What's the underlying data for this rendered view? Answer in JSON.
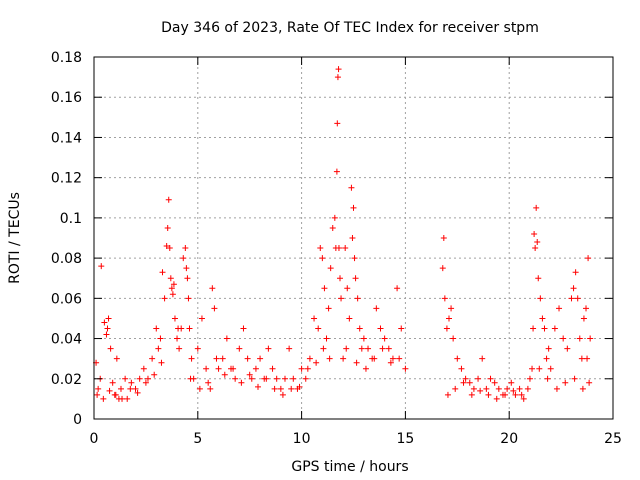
{
  "chart_data": {
    "type": "scatter",
    "title": "Day 346 of 2023, Rate Of TEC Index for receiver stpm",
    "xlabel": "GPS time / hours",
    "ylabel": "ROTI / TECUs",
    "xlim": [
      0,
      25
    ],
    "ylim": [
      0,
      0.18
    ],
    "xticks": [
      0,
      5,
      10,
      15,
      20,
      25
    ],
    "xtick_labels": [
      "0",
      "5",
      "10",
      "15",
      "20",
      "25"
    ],
    "yticks": [
      0,
      0.02,
      0.04,
      0.06,
      0.08,
      0.1,
      0.12,
      0.14,
      0.16,
      0.18
    ],
    "ytick_labels": [
      "0",
      "0.02",
      "0.04",
      "0.06",
      "0.08",
      "0.1",
      "0.12",
      "0.14",
      "0.16",
      "0.18"
    ],
    "grid": true,
    "marker": "plus",
    "color": "#ff0000",
    "series": [
      {
        "x": [
          0.1,
          0.2,
          0.3,
          0.35,
          0.5,
          0.6,
          0.65,
          0.7,
          0.8,
          0.9,
          1.0,
          1.1,
          1.2,
          1.3,
          1.5,
          1.6,
          1.8,
          2.0,
          2.2,
          2.4,
          2.6,
          2.8,
          3.0,
          3.1,
          3.2,
          3.3,
          3.4,
          3.5,
          3.55,
          3.6,
          3.65,
          3.7,
          3.75,
          3.8,
          3.85,
          3.9,
          4.0,
          4.1,
          4.2,
          4.3,
          4.4,
          4.45,
          4.5,
          4.55,
          4.6,
          4.7,
          4.8,
          5.0,
          5.2,
          5.4,
          5.6,
          5.7,
          5.8,
          6.0,
          6.2,
          6.4,
          6.6,
          6.8,
          7.0,
          7.2,
          7.4,
          7.6,
          7.8,
          8.0,
          8.2,
          8.4,
          8.6,
          8.8,
          9.0,
          9.2,
          9.4,
          9.6,
          9.8,
          10.0,
          10.2,
          10.4,
          10.6,
          10.8,
          10.9,
          11.0,
          11.1,
          11.2,
          11.3,
          11.4,
          11.5,
          11.6,
          11.65,
          11.7,
          11.72,
          11.75,
          11.78,
          11.8,
          11.85,
          11.9,
          12.0,
          12.1,
          12.2,
          12.3,
          12.4,
          12.45,
          12.5,
          12.55,
          12.6,
          12.7,
          12.8,
          12.9,
          13.0,
          13.2,
          13.4,
          13.6,
          13.8,
          14.0,
          14.2,
          14.4,
          14.6,
          14.8,
          15.0,
          16.8,
          16.85,
          16.9,
          17.0,
          17.1,
          17.2,
          17.3,
          17.5,
          17.7,
          17.9,
          18.1,
          18.3,
          18.5,
          18.7,
          18.9,
          19.1,
          19.3,
          19.5,
          19.7,
          19.9,
          20.1,
          20.3,
          20.5,
          20.7,
          20.9,
          21.0,
          21.1,
          21.15,
          21.2,
          21.25,
          21.3,
          21.35,
          21.4,
          21.5,
          21.6,
          21.7,
          21.8,
          21.9,
          22.0,
          22.2,
          22.4,
          22.6,
          22.8,
          23.0,
          23.1,
          23.2,
          23.3,
          23.4,
          23.5,
          23.6,
          23.7,
          23.75,
          23.8,
          23.9,
          0.15,
          0.45,
          0.75,
          1.05,
          1.35,
          1.75,
          2.1,
          2.5,
          2.9,
          3.25,
          4.05,
          4.65,
          5.1,
          5.5,
          5.9,
          6.3,
          6.7,
          7.1,
          7.5,
          7.9,
          8.3,
          8.7,
          9.1,
          9.5,
          9.9,
          10.3,
          10.7,
          11.05,
          11.35,
          12.15,
          12.65,
          13.1,
          13.5,
          13.9,
          14.3,
          14.7,
          17.05,
          17.4,
          17.8,
          18.2,
          18.6,
          19.0,
          19.4,
          19.8,
          20.2,
          20.6,
          21.45,
          21.85,
          22.3,
          22.7,
          23.15,
          23.55,
          23.85
        ],
        "y": [
          0.028,
          0.015,
          0.02,
          0.076,
          0.048,
          0.042,
          0.045,
          0.05,
          0.035,
          0.018,
          0.012,
          0.03,
          0.01,
          0.015,
          0.02,
          0.01,
          0.018,
          0.015,
          0.02,
          0.025,
          0.02,
          0.03,
          0.045,
          0.035,
          0.04,
          0.073,
          0.06,
          0.086,
          0.095,
          0.109,
          0.085,
          0.07,
          0.065,
          0.062,
          0.067,
          0.05,
          0.04,
          0.035,
          0.045,
          0.08,
          0.085,
          0.075,
          0.07,
          0.06,
          0.045,
          0.03,
          0.02,
          0.035,
          0.05,
          0.025,
          0.015,
          0.065,
          0.055,
          0.025,
          0.03,
          0.04,
          0.025,
          0.02,
          0.035,
          0.045,
          0.03,
          0.02,
          0.025,
          0.03,
          0.02,
          0.035,
          0.025,
          0.02,
          0.015,
          0.02,
          0.035,
          0.02,
          0.015,
          0.025,
          0.02,
          0.03,
          0.05,
          0.045,
          0.085,
          0.08,
          0.065,
          0.04,
          0.055,
          0.075,
          0.095,
          0.1,
          0.085,
          0.123,
          0.147,
          0.17,
          0.174,
          0.085,
          0.07,
          0.06,
          0.03,
          0.085,
          0.065,
          0.05,
          0.115,
          0.09,
          0.105,
          0.08,
          0.07,
          0.06,
          0.045,
          0.035,
          0.04,
          0.035,
          0.03,
          0.055,
          0.045,
          0.04,
          0.035,
          0.03,
          0.065,
          0.045,
          0.025,
          0.075,
          0.09,
          0.06,
          0.045,
          0.05,
          0.055,
          0.04,
          0.03,
          0.025,
          0.02,
          0.018,
          0.015,
          0.02,
          0.03,
          0.015,
          0.02,
          0.018,
          0.015,
          0.012,
          0.015,
          0.018,
          0.012,
          0.015,
          0.01,
          0.015,
          0.02,
          0.025,
          0.045,
          0.092,
          0.085,
          0.105,
          0.088,
          0.07,
          0.06,
          0.05,
          0.045,
          0.03,
          0.035,
          0.025,
          0.045,
          0.055,
          0.04,
          0.035,
          0.06,
          0.065,
          0.073,
          0.06,
          0.04,
          0.03,
          0.05,
          0.055,
          0.03,
          0.08,
          0.04,
          0.012,
          0.01,
          0.014,
          0.012,
          0.01,
          0.015,
          0.013,
          0.018,
          0.022,
          0.028,
          0.045,
          0.02,
          0.015,
          0.018,
          0.03,
          0.022,
          0.025,
          0.018,
          0.022,
          0.016,
          0.02,
          0.015,
          0.012,
          0.015,
          0.016,
          0.025,
          0.028,
          0.035,
          0.03,
          0.035,
          0.028,
          0.025,
          0.03,
          0.035,
          0.028,
          0.03,
          0.012,
          0.015,
          0.018,
          0.012,
          0.014,
          0.012,
          0.01,
          0.012,
          0.014,
          0.012,
          0.025,
          0.02,
          0.015,
          0.018,
          0.02,
          0.015,
          0.018
        ]
      }
    ]
  }
}
